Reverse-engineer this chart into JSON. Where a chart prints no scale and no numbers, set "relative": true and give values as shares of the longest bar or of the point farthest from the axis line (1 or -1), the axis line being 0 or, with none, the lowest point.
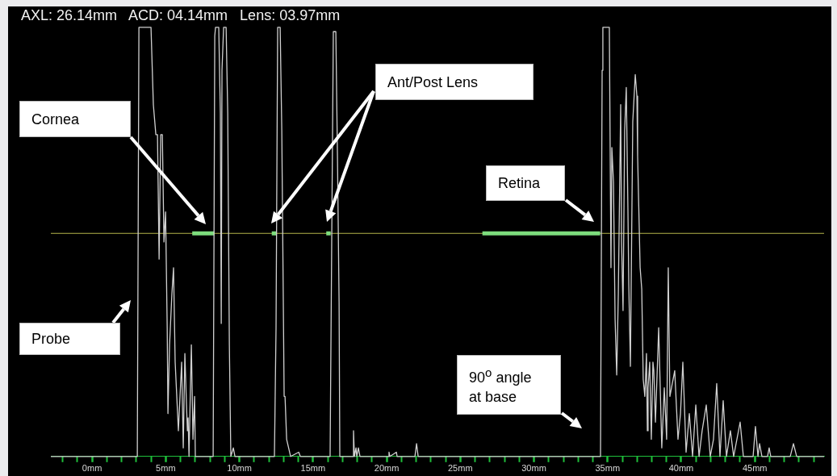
{
  "chart_data": {
    "type": "line",
    "title": "AXL: 26.14mm   ACD: 04.14mm   Lens: 03.97mm",
    "relative": true,
    "xlim": [
      -2.8,
      49.7
    ],
    "xticks": [
      {
        "value": -2,
        "label": null
      },
      {
        "value": -1,
        "label": null
      },
      {
        "value": 0,
        "label": "0mm"
      },
      {
        "value": 1,
        "label": null
      },
      {
        "value": 2,
        "label": null
      },
      {
        "value": 3,
        "label": null
      },
      {
        "value": 4,
        "label": null
      },
      {
        "value": 5,
        "label": "5mm"
      },
      {
        "value": 6,
        "label": null
      },
      {
        "value": 7,
        "label": null
      },
      {
        "value": 8,
        "label": null
      },
      {
        "value": 9,
        "label": null
      },
      {
        "value": 10,
        "label": "10mm"
      },
      {
        "value": 11,
        "label": null
      },
      {
        "value": 12,
        "label": null
      },
      {
        "value": 13,
        "label": null
      },
      {
        "value": 14,
        "label": null
      },
      {
        "value": 15,
        "label": "15mm"
      },
      {
        "value": 16,
        "label": null
      },
      {
        "value": 17,
        "label": null
      },
      {
        "value": 18,
        "label": null
      },
      {
        "value": 19,
        "label": null
      },
      {
        "value": 20,
        "label": "20mm"
      },
      {
        "value": 21,
        "label": null
      },
      {
        "value": 22,
        "label": null
      },
      {
        "value": 23,
        "label": null
      },
      {
        "value": 24,
        "label": null
      },
      {
        "value": 25,
        "label": "25mm"
      },
      {
        "value": 26,
        "label": null
      },
      {
        "value": 27,
        "label": null
      },
      {
        "value": 28,
        "label": null
      },
      {
        "value": 29,
        "label": null
      },
      {
        "value": 30,
        "label": "30mm"
      },
      {
        "value": 31,
        "label": null
      },
      {
        "value": 32,
        "label": null
      },
      {
        "value": 33,
        "label": null
      },
      {
        "value": 34,
        "label": null
      },
      {
        "value": 35,
        "label": "35mm"
      },
      {
        "value": 36,
        "label": null
      },
      {
        "value": 37,
        "label": null
      },
      {
        "value": 38,
        "label": null
      },
      {
        "value": 39,
        "label": null
      },
      {
        "value": 40,
        "label": "40mm"
      },
      {
        "value": 41,
        "label": null
      },
      {
        "value": 42,
        "label": null
      },
      {
        "value": 43,
        "label": null
      },
      {
        "value": 44,
        "label": null
      },
      {
        "value": 45,
        "label": "45mm"
      },
      {
        "value": 46,
        "label": null
      },
      {
        "value": 47,
        "label": null
      },
      {
        "value": 48,
        "label": null
      },
      {
        "value": 49,
        "label": null
      }
    ],
    "tick_labels": "x",
    "grid": false,
    "legend": false,
    "marker": "none",
    "line_style": "solid",
    "ref_lines": [
      {
        "axis": "y",
        "value": 0.52,
        "color": "#b5b54a"
      }
    ],
    "annotations": [
      "Cornea",
      "Ant/Post Lens",
      "Retina",
      "Probe",
      "90$^{o}$ angle at base"
    ],
    "series": [
      {
        "color": "#d0d0d0",
        "x": [
          -2.8,
          3.07,
          3.18,
          4.0,
          4.16,
          4.33,
          4.44,
          4.55,
          4.66,
          4.77,
          4.88,
          4.99,
          5.1,
          5.15,
          5.26,
          5.42,
          5.53,
          5.64,
          5.86,
          6.08,
          6.19,
          6.3,
          6.41,
          6.47,
          6.52,
          6.58,
          6.74,
          6.85,
          6.96,
          7.01,
          7.29,
          8.22,
          8.33,
          8.38,
          8.6,
          8.71,
          8.77,
          8.82,
          8.93,
          9.1,
          9.21,
          9.32,
          9.42,
          9.59,
          9.7,
          12.38,
          12.49,
          12.6,
          12.77,
          12.88,
          13.04,
          13.1,
          13.21,
          13.48,
          14.03,
          14.14,
          16.16,
          16.27,
          16.38,
          16.55,
          16.66,
          16.77,
          16.82,
          17.7,
          17.75,
          17.81,
          17.92,
          17.97,
          18.08,
          18.19,
          20.11,
          20.16,
          20.22,
          20.66,
          20.71,
          21.92,
          22.03,
          22.14,
          34.52,
          34.63,
          34.68,
          35.12,
          35.23,
          35.29,
          35.4,
          35.51,
          35.62,
          35.73,
          35.89,
          35.95,
          36.05,
          36.16,
          36.27,
          36.38,
          36.44,
          36.55,
          36.71,
          36.88,
          36.99,
          37.04,
          37.21,
          37.32,
          37.42,
          37.53,
          37.64,
          37.7,
          37.75,
          37.86,
          37.97,
          38.08,
          38.14,
          38.25,
          38.47,
          38.68,
          38.85,
          39.01,
          39.12,
          39.23,
          39.56,
          39.78,
          39.95,
          40.11,
          40.33,
          40.55,
          40.77,
          40.99,
          41.21,
          41.42,
          41.7,
          41.97,
          42.19,
          42.41,
          42.63,
          42.85,
          43.07,
          43.34,
          43.56,
          44.0,
          44.22,
          44.88,
          45.04,
          45.21,
          45.32,
          45.48,
          45.86,
          45.97,
          46.08,
          47.4,
          47.62,
          47.84,
          49.7
        ],
        "values": [
          0,
          0,
          1,
          1,
          0.82,
          0.75,
          0.75,
          0.46,
          0.75,
          0.75,
          0.5,
          0.57,
          0.3,
          0.1,
          0.26,
          0.38,
          0.44,
          0.22,
          0.06,
          0.22,
          0.02,
          0.24,
          0.12,
          0.06,
          0.09,
          0,
          0.26,
          0.04,
          0.14,
          0,
          0,
          0,
          0.98,
          1,
          1,
          0.8,
          0.31,
          0.9,
          1,
          1,
          0.8,
          0.26,
          0,
          0.02,
          0,
          0,
          0.3,
          1,
          1,
          0.76,
          0.14,
          0.14,
          0.04,
          0,
          0.01,
          0,
          0,
          0.5,
          0.99,
          0.99,
          0.7,
          0.36,
          0,
          0,
          0.06,
          0,
          0.02,
          0,
          0.02,
          0,
          0,
          0.01,
          0,
          0.01,
          0,
          0,
          0.03,
          0,
          0,
          0.9,
          1,
          1,
          0.44,
          0.72,
          0.64,
          0.32,
          0.19,
          0.38,
          0.82,
          0.5,
          0.34,
          0.76,
          0.86,
          0.58,
          0.4,
          0.21,
          0.78,
          0.89,
          0.84,
          0.7,
          0.44,
          0.39,
          0.18,
          0.14,
          0.24,
          0.06,
          0.16,
          0.22,
          0.04,
          0.22,
          0.2,
          0.08,
          0.3,
          0.02,
          0.16,
          0.04,
          0.44,
          0.14,
          0.2,
          0.04,
          0.1,
          0.22,
          0.01,
          0.1,
          0,
          0.12,
          0,
          0.06,
          0.12,
          0,
          0.04,
          0.17,
          0,
          0.13,
          0,
          0.06,
          0,
          0.08,
          0,
          0,
          0.07,
          0,
          0.03,
          0,
          0,
          0.02,
          0,
          0,
          0.03,
          0,
          0
        ]
      },
      {
        "color": "#7ddc7d",
        "x": [
          6.8,
          8.3,
          10,
          12.2,
          12.5,
          14,
          15.9,
          16.2,
          20,
          26.5,
          34.5
        ],
        "values": [
          0.52,
          0.52,
          null,
          0.52,
          0.52,
          null,
          0.52,
          0.52,
          null,
          0.52,
          0.52
        ]
      }
    ]
  }
}
